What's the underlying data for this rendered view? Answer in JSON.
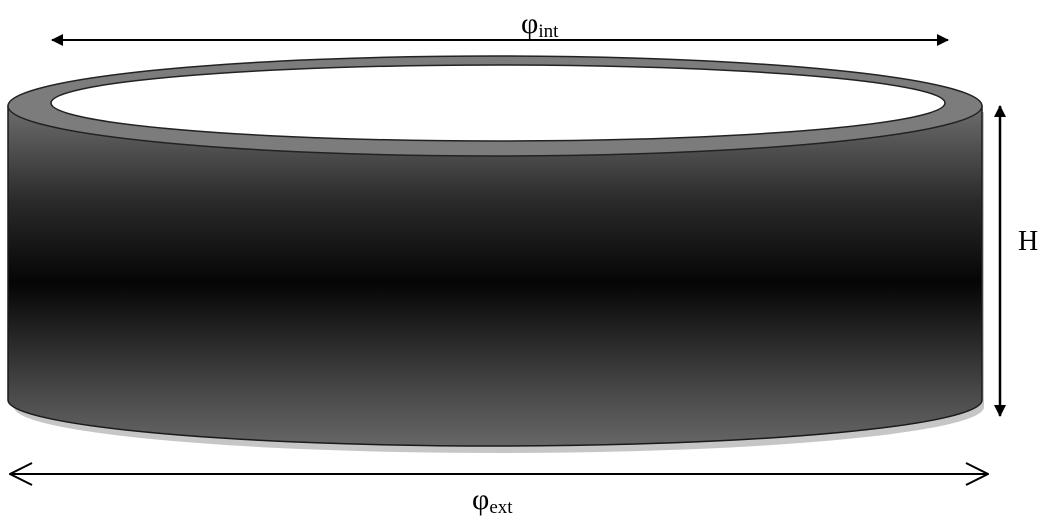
{
  "labels": {
    "inner_diameter": {
      "symbol": "φ",
      "subscript": "int"
    },
    "outer_diameter": {
      "symbol": "φ",
      "subscript": "ext"
    },
    "height": "H"
  },
  "colors": {
    "rim_top": "#7a7a7a",
    "side_dark": "#0a0a0a",
    "side_light": "#666666",
    "shadow": "#c8c8c8",
    "arrow": "#000000"
  }
}
